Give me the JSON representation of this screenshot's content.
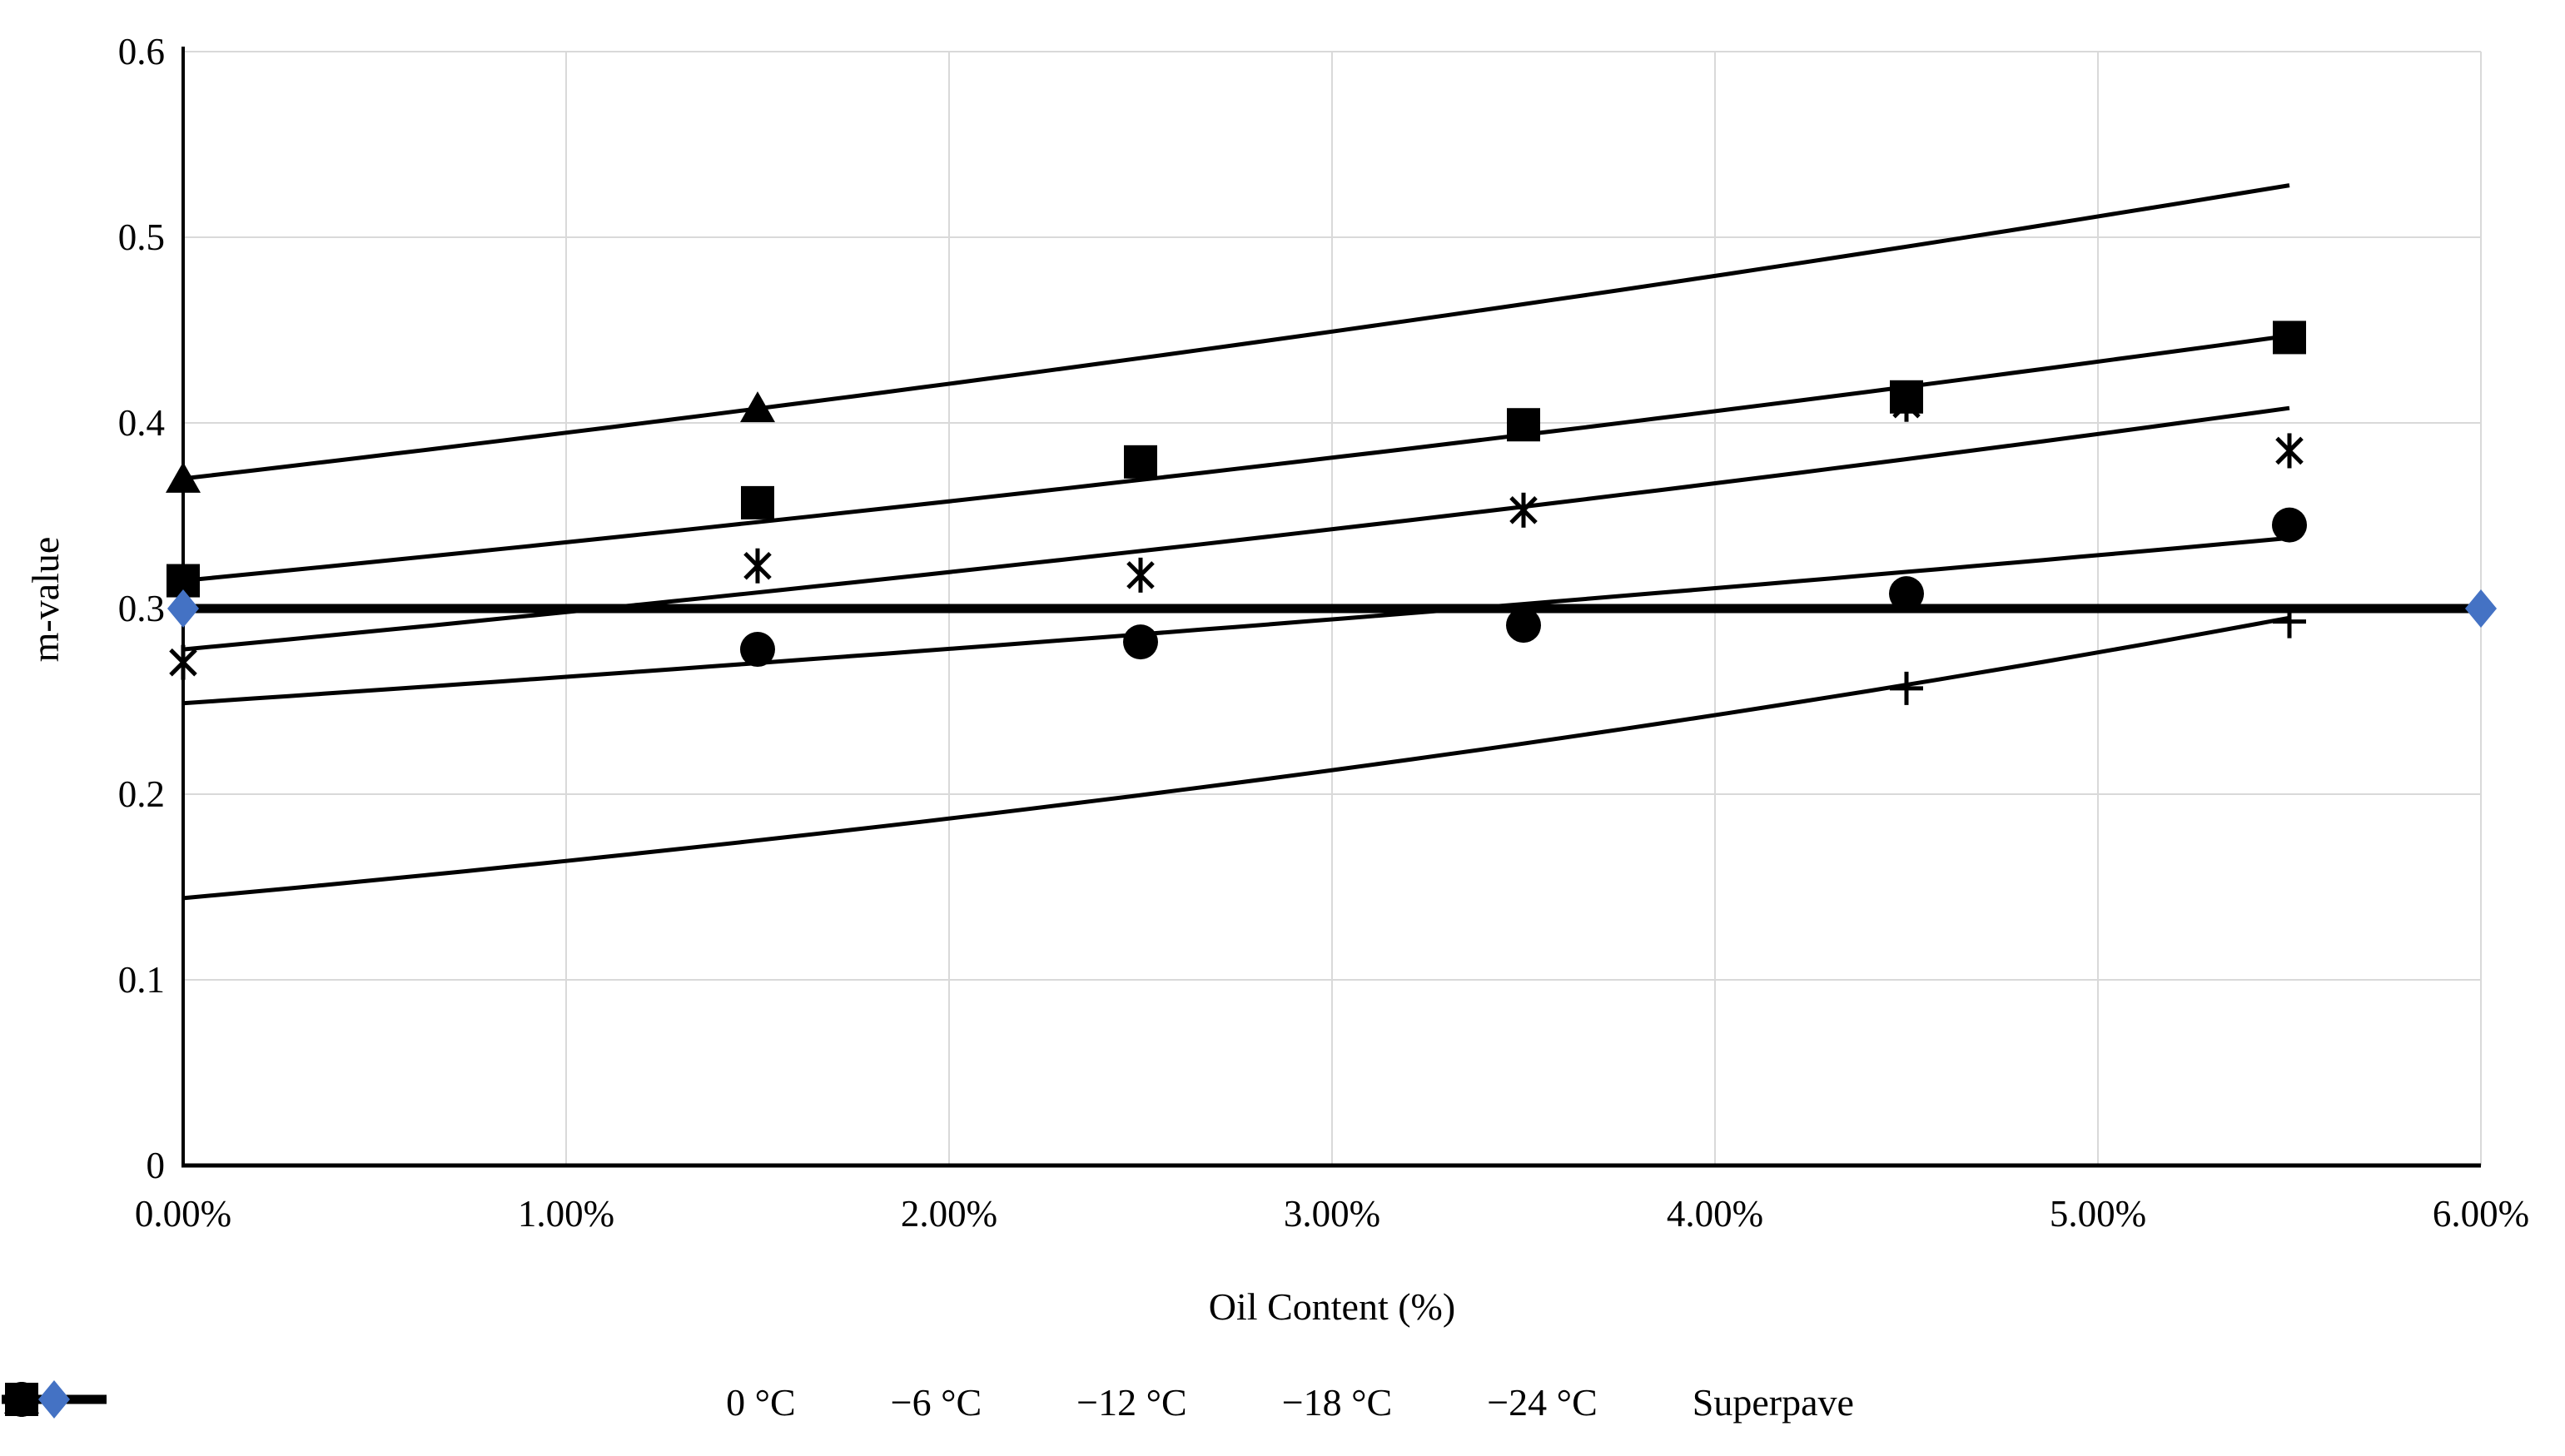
{
  "chart_data": {
    "type": "scatter",
    "title": "",
    "xlabel": "Oil Content (%)",
    "ylabel": "m-value",
    "xlim": [
      0,
      6
    ],
    "ylim": [
      0,
      0.6
    ],
    "grid": true,
    "legend_position": "bottom",
    "x_tick_values": [
      0,
      1,
      2,
      3,
      4,
      5,
      6
    ],
    "x_tick_labels": [
      "0.00%",
      "1.00%",
      "2.00%",
      "3.00%",
      "4.00%",
      "5.00%",
      "6.00%"
    ],
    "y_tick_values": [
      0.6,
      0.5,
      0.4,
      0.3,
      0.2,
      0.1,
      0
    ],
    "y_tick_labels": [
      "0.6",
      "0.5",
      "0.4",
      "0.3",
      "0.2",
      "0.1",
      "0"
    ],
    "colors": {
      "series_black": "#000000",
      "superpave_blue": "#4472C4",
      "gridline_gray": "#D9D9D9"
    },
    "series": [
      {
        "name": "0 °C",
        "marker": "triangle",
        "color": "#000000",
        "points": [
          [
            0,
            0.37
          ],
          [
            1.5,
            0.408
          ]
        ],
        "trendline": {
          "fit": "exponential",
          "x0": 0,
          "y0": 0.37,
          "x1": 5.5,
          "y1": 0.528,
          "width": 5
        }
      },
      {
        "name": "−6 °C",
        "marker": "square",
        "color": "#000000",
        "points": [
          [
            0,
            0.315
          ],
          [
            1.5,
            0.357
          ],
          [
            2.5,
            0.379
          ],
          [
            3.5,
            0.399
          ],
          [
            4.5,
            0.414
          ],
          [
            5.5,
            0.446
          ]
        ],
        "trendline": {
          "fit": "exponential",
          "x0": 0,
          "y0": 0.315,
          "x1": 5.5,
          "y1": 0.447,
          "width": 5
        }
      },
      {
        "name": "−12 °C",
        "marker": "asterisk",
        "color": "#000000",
        "points": [
          [
            0,
            0.271
          ],
          [
            1.5,
            0.323
          ],
          [
            2.5,
            0.318
          ],
          [
            3.5,
            0.353
          ],
          [
            4.5,
            0.41
          ],
          [
            5.5,
            0.385
          ]
        ],
        "trendline": {
          "fit": "exponential",
          "x0": 0,
          "y0": 0.278,
          "x1": 5.5,
          "y1": 0.408,
          "width": 5
        }
      },
      {
        "name": "−18 °C",
        "marker": "circle",
        "color": "#000000",
        "points": [
          [
            1.5,
            0.278
          ],
          [
            2.5,
            0.282
          ],
          [
            3.5,
            0.291
          ],
          [
            4.5,
            0.308
          ],
          [
            5.5,
            0.345
          ]
        ],
        "trendline": {
          "fit": "exponential",
          "x0": 0,
          "y0": 0.249,
          "x1": 5.5,
          "y1": 0.338,
          "width": 5
        }
      },
      {
        "name": "−24 °C",
        "marker": "plus",
        "color": "#000000",
        "points": [
          [
            4.5,
            0.257
          ],
          [
            5.5,
            0.293
          ]
        ],
        "trendline": {
          "fit": "exponential",
          "x0": 0,
          "y0": 0.144,
          "x1": 5.5,
          "y1": 0.295,
          "width": 5
        }
      },
      {
        "name": "Superpave",
        "marker": "diamond",
        "color": "#4472C4",
        "line_color": "#000000",
        "points": [
          [
            0,
            0.3
          ],
          [
            6,
            0.3
          ]
        ],
        "trendline": {
          "fit": "linear",
          "x0": 0,
          "y0": 0.3,
          "x1": 6,
          "y1": 0.3,
          "width": 11
        }
      }
    ]
  }
}
